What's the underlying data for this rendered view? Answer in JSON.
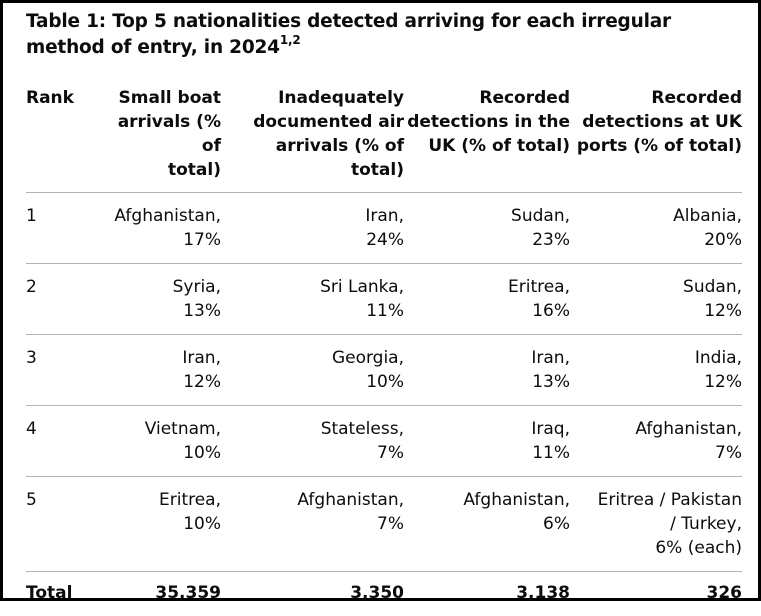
{
  "caption": {
    "text": "Table 1: Top 5 nationalities detected arriving for each irregular method of entry, in 2024",
    "superscript": "1,2"
  },
  "columns": [
    {
      "line1": "Rank",
      "line2": "",
      "line3": ""
    },
    {
      "line1": "Small boat",
      "line2": "arrivals (% of",
      "line3": "total)"
    },
    {
      "line1": "Inadequately",
      "line2": "documented air",
      "line3": "arrivals (% of total)"
    },
    {
      "line1": "Recorded",
      "line2": "detections in the",
      "line3": "UK (% of total)"
    },
    {
      "line1": "Recorded",
      "line2": "detections at UK",
      "line3": "ports (% of total)"
    }
  ],
  "rows": [
    {
      "rank": "1",
      "cells": [
        [
          "Afghanistan,",
          "17%"
        ],
        [
          "Iran,",
          "24%"
        ],
        [
          "Sudan,",
          "23%"
        ],
        [
          "Albania,",
          "20%"
        ]
      ]
    },
    {
      "rank": "2",
      "cells": [
        [
          "Syria,",
          "13%"
        ],
        [
          "Sri Lanka,",
          "11%"
        ],
        [
          "Eritrea,",
          "16%"
        ],
        [
          "Sudan,",
          "12%"
        ]
      ]
    },
    {
      "rank": "3",
      "cells": [
        [
          "Iran,",
          "12%"
        ],
        [
          "Georgia,",
          "10%"
        ],
        [
          "Iran,",
          "13%"
        ],
        [
          "India,",
          "12%"
        ]
      ]
    },
    {
      "rank": "4",
      "cells": [
        [
          "Vietnam,",
          "10%"
        ],
        [
          "Stateless,",
          "7%"
        ],
        [
          "Iraq,",
          "11%"
        ],
        [
          "Afghanistan,",
          "7%"
        ]
      ]
    },
    {
      "rank": "5",
      "cells": [
        [
          "Eritrea,",
          "10%"
        ],
        [
          "Afghanistan,",
          "7%"
        ],
        [
          "Afghanistan,",
          "6%"
        ],
        [
          "Eritrea / Pakistan",
          "/ Turkey,",
          "6% (each)"
        ]
      ]
    }
  ],
  "total": {
    "label": "Total",
    "values": [
      "35,359",
      "3,350",
      "3,138",
      "326"
    ]
  }
}
